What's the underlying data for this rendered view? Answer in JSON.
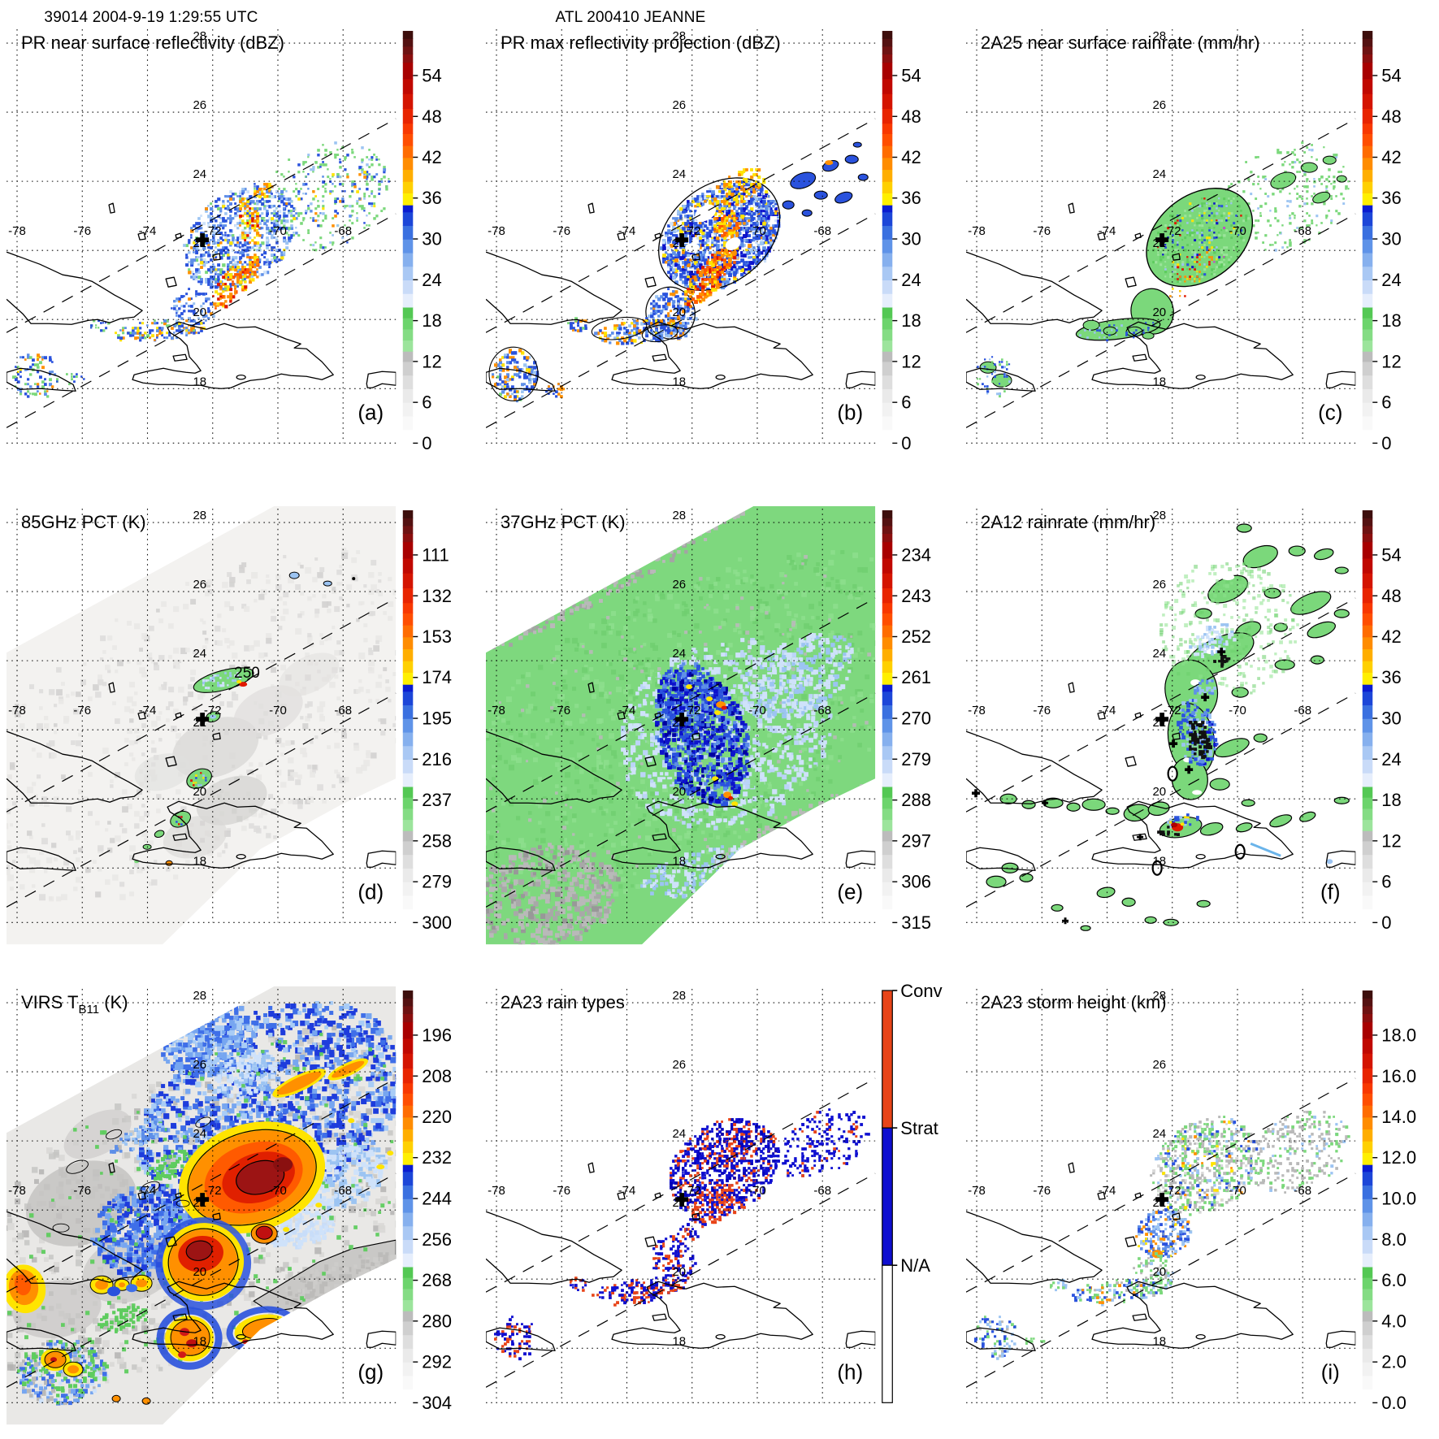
{
  "header": {
    "left": "39014 2004-9-19 1:29:55 UTC",
    "center": "ATL 200410 JEANNE"
  },
  "palette": {
    "g": "#7bd87b",
    "g2": "#5ecc5e",
    "g3": "#9ce49c",
    "pb": "#cfe2fa",
    "lb": "#9cc4f2",
    "mb": "#5e8fe8",
    "b": "#2a52dd",
    "db": "#0d13cc",
    "nv": "#0000a0",
    "y": "#ffe400",
    "o": "#ff9000",
    "do": "#ff5a00",
    "r": "#e01800",
    "dr": "#9c1414",
    "mr": "#5e1410",
    "gy": "#b9b9b9",
    "lgy": "#e9e8e6",
    "w": "#ffffff",
    "conv": "#e84418",
    "strat": "#0f0fd0",
    "coast": "#000000"
  },
  "colorbar_scale": [
    [
      0.0,
      0.033,
      "#ffffff"
    ],
    [
      0.033,
      0.066,
      "#f9f9f9"
    ],
    [
      0.066,
      0.099,
      "#f2f2f2"
    ],
    [
      0.099,
      0.132,
      "#eaeaea"
    ],
    [
      0.132,
      0.165,
      "#dedede"
    ],
    [
      0.165,
      0.198,
      "#cfcfcf"
    ],
    [
      0.198,
      0.223,
      "#bcbcbc"
    ],
    [
      0.223,
      0.25,
      "#9ce49c"
    ],
    [
      0.25,
      0.277,
      "#84dc84"
    ],
    [
      0.277,
      0.304,
      "#6cd46c"
    ],
    [
      0.304,
      0.33,
      "#54c854"
    ],
    [
      0.33,
      0.363,
      "#e6eefc"
    ],
    [
      0.363,
      0.396,
      "#c9dbf8"
    ],
    [
      0.396,
      0.429,
      "#a9c8f4"
    ],
    [
      0.429,
      0.462,
      "#86b0ee"
    ],
    [
      0.462,
      0.495,
      "#5f93e8"
    ],
    [
      0.495,
      0.528,
      "#3a70e0"
    ],
    [
      0.528,
      0.561,
      "#1c46d8"
    ],
    [
      0.561,
      0.578,
      "#0a1cd0"
    ],
    [
      0.578,
      0.607,
      "#ffef00"
    ],
    [
      0.607,
      0.635,
      "#ffd000"
    ],
    [
      0.635,
      0.664,
      "#ffae00"
    ],
    [
      0.664,
      0.693,
      "#ff8c00"
    ],
    [
      0.693,
      0.722,
      "#ff6c00"
    ],
    [
      0.722,
      0.751,
      "#ff4e00"
    ],
    [
      0.751,
      0.776,
      "#f83800"
    ],
    [
      0.776,
      0.812,
      "#e82400"
    ],
    [
      0.812,
      0.848,
      "#d41400"
    ],
    [
      0.848,
      0.884,
      "#c00800"
    ],
    [
      0.884,
      0.924,
      "#a80000"
    ],
    [
      0.924,
      0.944,
      "#8a0e0e"
    ],
    [
      0.944,
      0.963,
      "#6e1212"
    ],
    [
      0.963,
      0.982,
      "#541111"
    ],
    [
      0.982,
      1.0,
      "#3d0e0c"
    ]
  ],
  "map": {
    "lon_gridlines": [
      -78,
      -76,
      -74,
      -72,
      -70,
      -68
    ],
    "lat_gridlines": [
      28,
      26,
      24,
      22,
      20,
      18
    ],
    "lon_tick_labels": [
      "-78",
      "-76",
      "-74",
      "-72",
      "-70",
      "-68"
    ],
    "lat_tick_labels": [
      "28",
      "26",
      "24",
      "22",
      "20",
      "18"
    ],
    "storm_center": {
      "lon": -72.3,
      "lat": 22.3
    },
    "region": "Cuba, Hispaniola, Jamaica, Puerto Rico, Bahamas"
  },
  "chart_data": [
    {
      "panel": "(a)",
      "type": "heatmap",
      "title": "PR near surface reflectivity (dBZ)",
      "units": "dBZ",
      "colorbar_ticks": [
        "54",
        "48",
        "42",
        "36",
        "30",
        "24",
        "18",
        "12",
        "6",
        "0"
      ],
      "colorbar": "spectral"
    },
    {
      "panel": "(b)",
      "type": "heatmap",
      "title": "PR max reflectivity projection (dBZ)",
      "units": "dBZ",
      "colorbar_ticks": [
        "54",
        "48",
        "42",
        "36",
        "30",
        "24",
        "18",
        "12",
        "6",
        "0"
      ],
      "colorbar": "spectral"
    },
    {
      "panel": "(c)",
      "type": "heatmap",
      "title": "2A25 near surface rainrate (mm/hr)",
      "units": "mm/hr",
      "colorbar_ticks": [
        "54",
        "48",
        "42",
        "36",
        "30",
        "24",
        "18",
        "12",
        "6",
        "0"
      ],
      "colorbar": "spectral"
    },
    {
      "panel": "(d)",
      "type": "heatmap",
      "title": "85GHz PCT (K)",
      "units": "K",
      "colorbar_ticks": [
        "111",
        "132",
        "153",
        "174",
        "195",
        "216",
        "237",
        "258",
        "279",
        "300"
      ],
      "colorbar": "spectral",
      "contour_label": "250"
    },
    {
      "panel": "(e)",
      "type": "heatmap",
      "title": "37GHz PCT (K)",
      "units": "K",
      "colorbar_ticks": [
        "234",
        "243",
        "252",
        "261",
        "270",
        "279",
        "288",
        "297",
        "306",
        "315"
      ],
      "colorbar": "spectral"
    },
    {
      "panel": "(f)",
      "type": "heatmap",
      "title": "2A12 rainrate (mm/hr)",
      "units": "mm/hr",
      "colorbar_ticks": [
        "54",
        "48",
        "42",
        "36",
        "30",
        "24",
        "18",
        "12",
        "6",
        "0"
      ],
      "colorbar": "spectral"
    },
    {
      "panel": "(g)",
      "type": "heatmap",
      "title_pre": "VIRS T",
      "title_sub": "B11",
      "title_post": " (K)",
      "title": "VIRS TB11 (K)",
      "units": "K",
      "colorbar_ticks": [
        "196",
        "208",
        "220",
        "232",
        "244",
        "256",
        "268",
        "280",
        "292",
        "304"
      ],
      "colorbar": "spectral"
    },
    {
      "panel": "(h)",
      "type": "heatmap",
      "title": "2A23 rain types",
      "units": "category",
      "colorbar_categories": [
        "Conv",
        "Strat",
        "N/A"
      ],
      "colorbar": "raintype"
    },
    {
      "panel": "(i)",
      "type": "heatmap",
      "title": "2A23 storm height (km)",
      "units": "km",
      "colorbar_ticks": [
        "18.0",
        "16.0",
        "14.0",
        "12.0",
        "10.0",
        "8.0",
        "6.0",
        "4.0",
        "2.0",
        "0.0"
      ],
      "colorbar": "spectral"
    }
  ]
}
